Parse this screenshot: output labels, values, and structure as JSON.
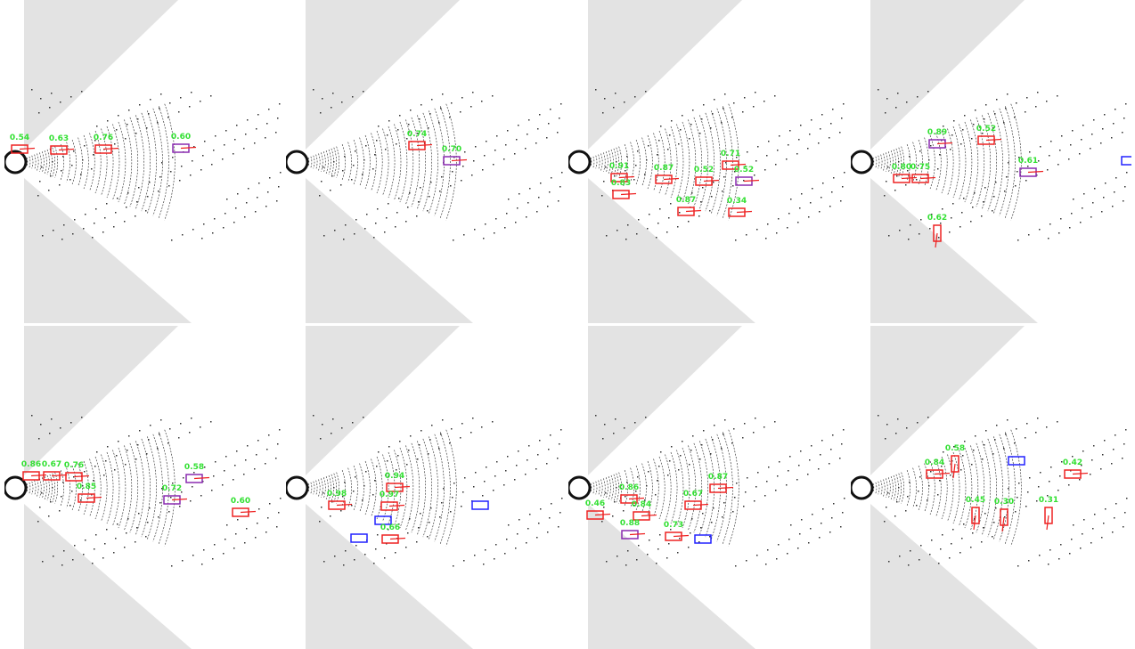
{
  "panels": [
    {
      "detections": [
        "0.54",
        "0.63",
        "0.76",
        "0.60"
      ]
    },
    {
      "detections": [
        "0.74",
        "0.70"
      ]
    },
    {
      "detections": [
        "0.71",
        "0.91",
        "0.87",
        "0.52",
        "0.52",
        "0.83",
        "0.87",
        "0.34"
      ]
    },
    {
      "detections": [
        "0.89",
        "0.52",
        "0.80",
        "0.75",
        "0.61",
        "0.62"
      ]
    },
    {
      "detections": [
        "0.86",
        "0.67",
        "0.76",
        "0.58",
        "0.85",
        "0.72",
        "0.60"
      ]
    },
    {
      "detections": [
        "0.94",
        "0.98",
        "0.97",
        "0.66"
      ]
    },
    {
      "detections": [
        "0.87",
        "0.86",
        "0.67",
        "0.46",
        "0.84",
        "0.88",
        "0.73"
      ]
    },
    {
      "detections": [
        "0.58",
        "0.84",
        "0.42",
        "0.45",
        "0.30",
        "0.31"
      ]
    }
  ]
}
